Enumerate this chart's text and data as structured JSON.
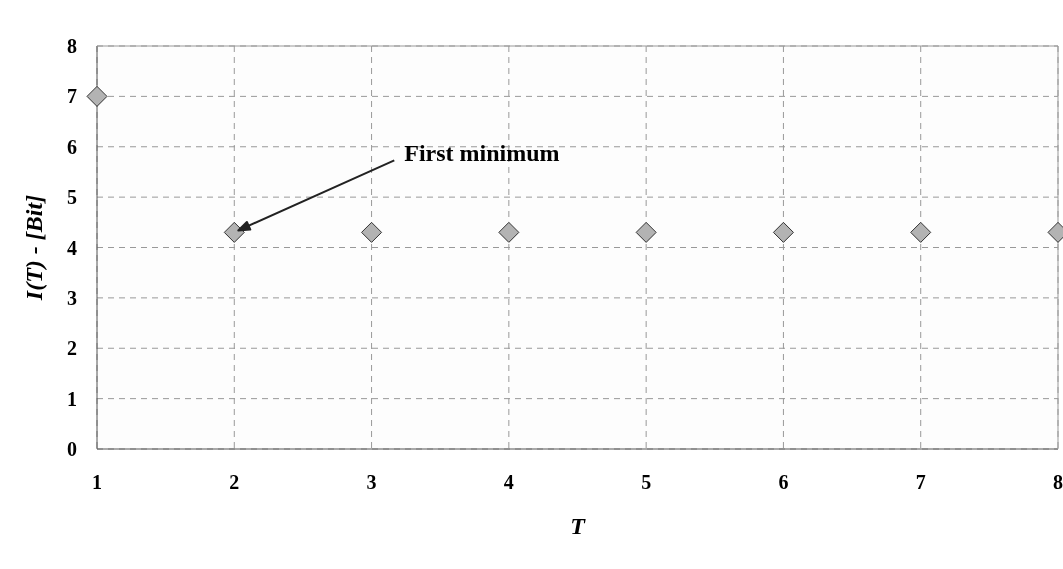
{
  "chart_data": {
    "type": "scatter",
    "xlabel": "T",
    "ylabel": "I(T) - [Bit]",
    "x": [
      1,
      2,
      3,
      4,
      5,
      6,
      7,
      8
    ],
    "series": [
      {
        "color": "#b3b3b3",
        "values": [
          7.0,
          4.3,
          4.3,
          4.3,
          4.3,
          4.3,
          4.3,
          4.3
        ]
      }
    ],
    "xlim": [
      1,
      8
    ],
    "xticks": [
      1,
      2,
      3,
      4,
      5,
      6,
      7,
      8
    ],
    "ylim": [
      0,
      8
    ],
    "yticks": [
      0,
      1,
      2,
      3,
      4,
      5,
      6,
      7,
      8
    ],
    "grid": true,
    "marker": "diamond",
    "annotations": [
      {
        "text": "First minimum",
        "x": 2,
        "y": 4.3
      }
    ]
  }
}
